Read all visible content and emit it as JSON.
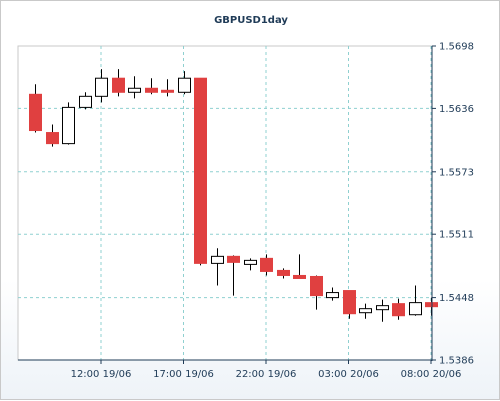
{
  "chart_data": {
    "type": "candlestick",
    "title": "GBPUSD1day",
    "ylim": [
      1.5386,
      1.5698
    ],
    "y_ticks": [
      "1.5698",
      "1.5636",
      "1.5573",
      "1.5511",
      "1.5448",
      "1.5386"
    ],
    "x_ticks": [
      "12:00 19/06",
      "17:00 19/06",
      "22:00 19/06",
      "03:00 20/06",
      "08:00 20/06"
    ],
    "grid": true,
    "colors": {
      "up": "#ffffff",
      "down": "#e04040",
      "outline": "#000000",
      "grid": "#8fd0d0",
      "axis": "#1f3b57"
    },
    "candles": [
      {
        "open": 1.565,
        "high": 1.566,
        "low": 1.5612,
        "close": 1.5614
      },
      {
        "open": 1.5612,
        "high": 1.562,
        "low": 1.5598,
        "close": 1.5601
      },
      {
        "open": 1.5601,
        "high": 1.5642,
        "low": 1.56,
        "close": 1.5637
      },
      {
        "open": 1.5637,
        "high": 1.5652,
        "low": 1.5635,
        "close": 1.5648
      },
      {
        "open": 1.5648,
        "high": 1.5675,
        "low": 1.5642,
        "close": 1.5666
      },
      {
        "open": 1.5666,
        "high": 1.5675,
        "low": 1.5648,
        "close": 1.5652
      },
      {
        "open": 1.5652,
        "high": 1.5668,
        "low": 1.5646,
        "close": 1.5656
      },
      {
        "open": 1.5656,
        "high": 1.5666,
        "low": 1.565,
        "close": 1.5652
      },
      {
        "open": 1.5654,
        "high": 1.5665,
        "low": 1.5648,
        "close": 1.5652
      },
      {
        "open": 1.5652,
        "high": 1.5673,
        "low": 1.565,
        "close": 1.5666
      },
      {
        "open": 1.5666,
        "high": 1.5666,
        "low": 1.548,
        "close": 1.5482
      },
      {
        "open": 1.5482,
        "high": 1.5497,
        "low": 1.546,
        "close": 1.5489
      },
      {
        "open": 1.5489,
        "high": 1.549,
        "low": 1.545,
        "close": 1.5483
      },
      {
        "open": 1.5481,
        "high": 1.5487,
        "low": 1.5475,
        "close": 1.5485
      },
      {
        "open": 1.5487,
        "high": 1.5491,
        "low": 1.547,
        "close": 1.5474
      },
      {
        "open": 1.5475,
        "high": 1.5477,
        "low": 1.5467,
        "close": 1.547
      },
      {
        "open": 1.547,
        "high": 1.5491,
        "low": 1.5467,
        "close": 1.5467
      },
      {
        "open": 1.5469,
        "high": 1.547,
        "low": 1.5436,
        "close": 1.545
      },
      {
        "open": 1.5448,
        "high": 1.5458,
        "low": 1.5445,
        "close": 1.5453
      },
      {
        "open": 1.5455,
        "high": 1.5455,
        "low": 1.5427,
        "close": 1.5432
      },
      {
        "open": 1.5433,
        "high": 1.5442,
        "low": 1.5427,
        "close": 1.5437
      },
      {
        "open": 1.5436,
        "high": 1.5446,
        "low": 1.5424,
        "close": 1.544
      },
      {
        "open": 1.5442,
        "high": 1.5447,
        "low": 1.5426,
        "close": 1.543
      },
      {
        "open": 1.5431,
        "high": 1.546,
        "low": 1.543,
        "close": 1.5443
      },
      {
        "open": 1.5443,
        "high": 1.5448,
        "low": 1.543,
        "close": 1.5439
      }
    ]
  }
}
